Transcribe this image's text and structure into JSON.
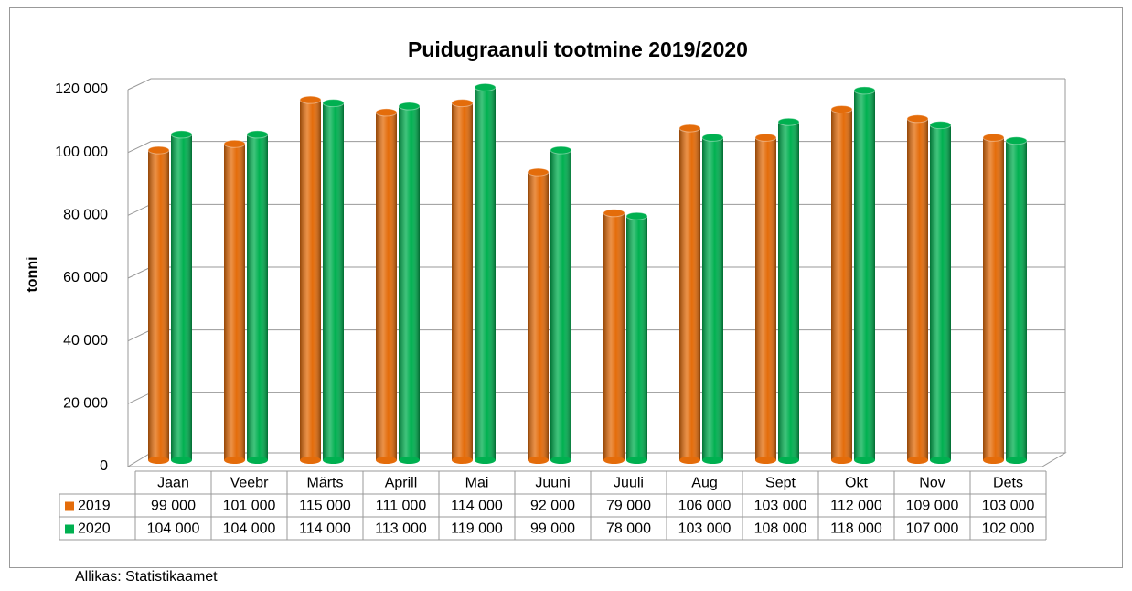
{
  "chart_data": {
    "type": "bar",
    "title": "Puidugraanuli tootmine 2019/2020",
    "ylabel": "tonni",
    "source": "Allikas: Statistikaamet",
    "categories": [
      "Jaan",
      "Veebr",
      "Märts",
      "Aprill",
      "Mai",
      "Juuni",
      "Juuli",
      "Aug",
      "Sept",
      "Okt",
      "Nov",
      "Dets"
    ],
    "series": [
      {
        "name": "2019",
        "color": "#e46c0a",
        "values": [
          99000,
          101000,
          115000,
          111000,
          114000,
          92000,
          79000,
          106000,
          103000,
          112000,
          109000,
          103000
        ],
        "value_labels": [
          "99 000",
          "101 000",
          "115 000",
          "111 000",
          "114 000",
          "92 000",
          "79 000",
          "106 000",
          "103 000",
          "112 000",
          "109 000",
          "103 000"
        ]
      },
      {
        "name": "2020",
        "color": "#00b050",
        "values": [
          104000,
          104000,
          114000,
          113000,
          119000,
          99000,
          78000,
          103000,
          108000,
          118000,
          107000,
          102000
        ],
        "value_labels": [
          "104 000",
          "104 000",
          "114 000",
          "113 000",
          "119 000",
          "99 000",
          "78 000",
          "103 000",
          "108 000",
          "118 000",
          "107 000",
          "102 000"
        ]
      }
    ],
    "ylim": [
      0,
      120000
    ],
    "yticks": [
      0,
      {
        "value": 20000,
        "label": "20 000"
      },
      {
        "value": 40000,
        "label": "40 000"
      },
      {
        "value": 60000,
        "label": "60 000"
      },
      {
        "value": 80000,
        "label": "80 000"
      },
      {
        "value": 100000,
        "label": "100 000"
      },
      {
        "value": 120000,
        "label": "120 000"
      }
    ],
    "grid": true
  }
}
